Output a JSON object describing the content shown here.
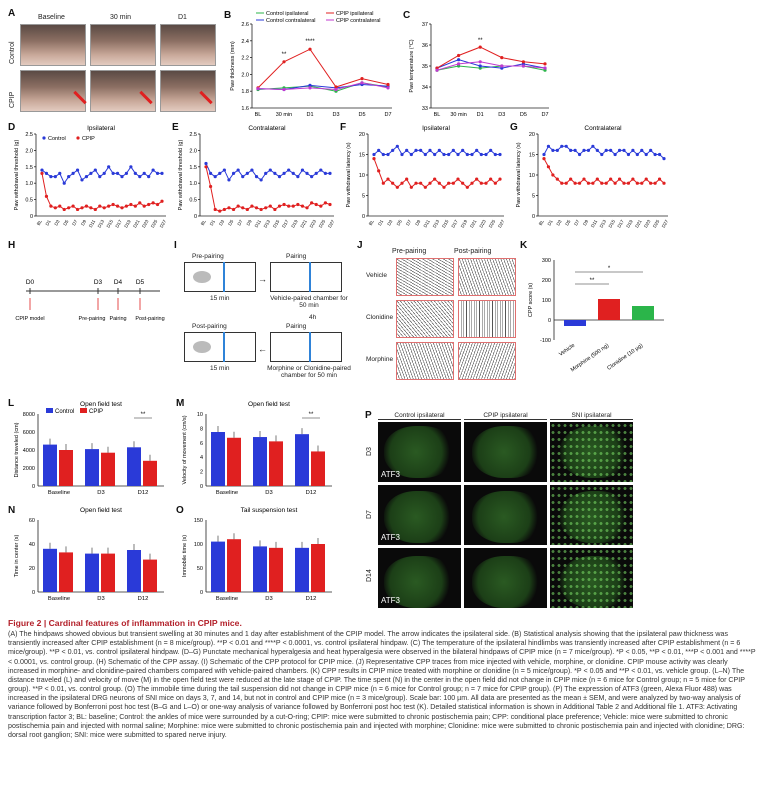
{
  "panels": {
    "A": "A",
    "B": "B",
    "C": "C",
    "D": "D",
    "E": "E",
    "F": "F",
    "G": "G",
    "H": "H",
    "I": "I",
    "J": "J",
    "K": "K",
    "L": "L",
    "M": "M",
    "N": "N",
    "O": "O",
    "P": "P"
  },
  "photo": {
    "cols": [
      "Baseline",
      "30 min",
      "D1"
    ],
    "rows": [
      "Control",
      "CPIP"
    ]
  },
  "chart_data": [
    {
      "panel": "B",
      "type": "line",
      "categories": [
        "BL",
        "30 min",
        "D1",
        "D3",
        "D5",
        "D7"
      ],
      "ylabel": "Paw thickness (mm)",
      "ylim": [
        1.6,
        2.6
      ],
      "yticks": [
        "1.6",
        "1.8",
        "2.0",
        "2.2",
        "2.4",
        "2.6"
      ],
      "series": [
        {
          "name": "Control ipsilateral",
          "color": "#2bb54a",
          "values": [
            1.82,
            1.84,
            1.86,
            1.8,
            1.9,
            1.85
          ]
        },
        {
          "name": "Control contralateral",
          "color": "#2a3ad8",
          "values": [
            1.83,
            1.82,
            1.87,
            1.84,
            1.88,
            1.86
          ]
        },
        {
          "name": "CPIP ipsilateral",
          "color": "#e02020",
          "values": [
            1.84,
            2.15,
            2.3,
            1.85,
            1.95,
            1.88
          ]
        },
        {
          "name": "CPIP contralateral",
          "color": "#c03ad0",
          "values": [
            1.83,
            1.82,
            1.84,
            1.82,
            1.9,
            1.84
          ]
        }
      ],
      "annotations": [
        "**",
        "****"
      ]
    },
    {
      "panel": "C",
      "type": "line",
      "categories": [
        "BL",
        "30 min",
        "D1",
        "D3",
        "D5",
        "D7"
      ],
      "ylabel": "Paw temperature (°C)",
      "ylim": [
        33,
        37
      ],
      "yticks": [
        "33",
        "34",
        "35",
        "36",
        "37"
      ],
      "series": [
        {
          "name": "Control ipsilateral",
          "color": "#2bb54a",
          "values": [
            34.8,
            35.0,
            34.9,
            35.0,
            35.0,
            34.8
          ]
        },
        {
          "name": "Control contralateral",
          "color": "#2a3ad8",
          "values": [
            34.9,
            35.3,
            35.0,
            34.9,
            35.1,
            34.9
          ]
        },
        {
          "name": "CPIP ipsilateral",
          "color": "#e02020",
          "values": [
            34.9,
            35.5,
            35.9,
            35.4,
            35.2,
            35.1
          ]
        },
        {
          "name": "CPIP contralateral",
          "color": "#c03ad0",
          "values": [
            34.8,
            35.1,
            35.2,
            35.0,
            35.0,
            34.9
          ]
        }
      ],
      "annotations": [
        "**"
      ]
    },
    {
      "panel": "D",
      "type": "line",
      "title": "Ipsilateral",
      "ylabel": "Paw withdrawal threshold (g)",
      "ylim": [
        0,
        2.5
      ],
      "yticks": [
        "0",
        "0.5",
        "1.0",
        "1.5",
        "2.0",
        "2.5"
      ],
      "xticks": [
        "BL",
        "D1",
        "D3",
        "D5",
        "D7",
        "D9",
        "D11",
        "D13",
        "D15",
        "D17",
        "D19",
        "D21",
        "D23",
        "D25",
        "D27"
      ],
      "series": [
        {
          "name": "Control",
          "color": "#2a3ad8",
          "values": [
            1.4,
            1.3,
            1.2,
            1.2,
            1.3,
            1.0,
            1.2,
            1.3,
            1.4,
            1.1,
            1.2,
            1.3,
            1.4,
            1.2,
            1.3,
            1.5,
            1.3,
            1.3,
            1.2,
            1.3,
            1.5,
            1.3,
            1.2,
            1.3,
            1.2,
            1.4,
            1.3,
            1.3
          ]
        },
        {
          "name": "CPIP",
          "color": "#e02020",
          "values": [
            1.3,
            0.6,
            0.3,
            0.25,
            0.3,
            0.2,
            0.25,
            0.3,
            0.2,
            0.25,
            0.3,
            0.25,
            0.2,
            0.3,
            0.25,
            0.3,
            0.35,
            0.3,
            0.25,
            0.3,
            0.35,
            0.3,
            0.4,
            0.3,
            0.35,
            0.4,
            0.35,
            0.45
          ]
        }
      ]
    },
    {
      "panel": "E",
      "type": "line",
      "title": "Contralateral",
      "ylabel": "Paw withdrawal threshold (g)",
      "ylim": [
        0,
        2.5
      ],
      "yticks": [
        "0",
        "0.5",
        "1.0",
        "1.5",
        "2.0",
        "2.5"
      ],
      "xticks": [
        "BL",
        "D1",
        "D3",
        "D5",
        "D7",
        "D9",
        "D11",
        "D13",
        "D15",
        "D17",
        "D19",
        "D21",
        "D23",
        "D25",
        "D27"
      ],
      "series": [
        {
          "name": "Control",
          "color": "#2a3ad8",
          "values": [
            1.6,
            1.3,
            1.2,
            1.3,
            1.4,
            1.1,
            1.3,
            1.4,
            1.2,
            1.3,
            1.4,
            1.2,
            1.1,
            1.3,
            1.4,
            1.3,
            1.2,
            1.3,
            1.4,
            1.3,
            1.2,
            1.4,
            1.3,
            1.2,
            1.3,
            1.4,
            1.3,
            1.3
          ]
        },
        {
          "name": "CPIP",
          "color": "#e02020",
          "values": [
            1.5,
            0.9,
            0.2,
            0.15,
            0.2,
            0.25,
            0.2,
            0.3,
            0.25,
            0.2,
            0.3,
            0.25,
            0.2,
            0.25,
            0.3,
            0.2,
            0.3,
            0.35,
            0.3,
            0.3,
            0.35,
            0.3,
            0.25,
            0.4,
            0.35,
            0.3,
            0.4,
            0.35
          ]
        }
      ]
    },
    {
      "panel": "F",
      "type": "line",
      "title": "Ipsilateral",
      "ylabel": "Paw withdrawal latency (s)",
      "ylim": [
        0,
        20
      ],
      "yticks": [
        "0",
        "5",
        "10",
        "15",
        "20"
      ],
      "xticks": [
        "BL",
        "D1",
        "D3",
        "D5",
        "D7",
        "D9",
        "D11",
        "D13",
        "D15",
        "D17",
        "D19",
        "D21",
        "D23",
        "D25",
        "D27"
      ],
      "series": [
        {
          "name": "Control",
          "color": "#2a3ad8",
          "values": [
            15,
            16,
            15,
            15,
            16,
            17,
            15,
            16,
            15,
            16,
            16,
            15,
            16,
            15,
            16,
            15,
            15,
            16,
            15,
            16,
            15,
            15,
            16,
            15,
            15,
            16,
            15,
            15
          ]
        },
        {
          "name": "CPIP",
          "color": "#e02020",
          "values": [
            14,
            11,
            8,
            9,
            8,
            7,
            8,
            9,
            7,
            8,
            8,
            7,
            8,
            9,
            8,
            7,
            8,
            8,
            9,
            8,
            7,
            8,
            9,
            8,
            8,
            9,
            8,
            9
          ]
        }
      ]
    },
    {
      "panel": "G",
      "type": "line",
      "title": "Contralateral",
      "ylabel": "Paw withdrawal latency (s)",
      "ylim": [
        0,
        20
      ],
      "yticks": [
        "0",
        "5",
        "10",
        "15",
        "20"
      ],
      "xticks": [
        "BL",
        "D1",
        "D3",
        "D5",
        "D7",
        "D9",
        "D11",
        "D13",
        "D15",
        "D17",
        "D19",
        "D21",
        "D23",
        "D25",
        "D27"
      ],
      "series": [
        {
          "name": "Control",
          "color": "#2a3ad8",
          "values": [
            15,
            17,
            16,
            16,
            17,
            17,
            16,
            16,
            15,
            16,
            16,
            17,
            16,
            15,
            16,
            16,
            15,
            16,
            16,
            15,
            16,
            15,
            16,
            15,
            16,
            15,
            15,
            14
          ]
        },
        {
          "name": "CPIP",
          "color": "#e02020",
          "values": [
            14,
            12,
            10,
            9,
            8,
            8,
            9,
            8,
            8,
            9,
            8,
            8,
            9,
            8,
            8,
            9,
            8,
            9,
            8,
            8,
            9,
            8,
            8,
            9,
            8,
            8,
            9,
            8
          ]
        }
      ]
    },
    {
      "panel": "K",
      "type": "bar",
      "categories": [
        "Vehicle",
        "Morphine (500 ng)",
        "Clonidine (10 µg)"
      ],
      "values": [
        -30,
        105,
        70
      ],
      "colors": [
        "#2a3ad8",
        "#e02020",
        "#2bb54a"
      ],
      "ylabel": "CPP score (s)",
      "ylim": [
        -100,
        300
      ],
      "yticks": [
        "-100",
        "0",
        "100",
        "200",
        "300"
      ],
      "annotations": [
        "**",
        "*"
      ]
    },
    {
      "panel": "L",
      "type": "bar",
      "title": "Open field test",
      "categories": [
        "Baseline",
        "D3",
        "D12"
      ],
      "series": [
        {
          "name": "Control",
          "color": "#2a3ad8",
          "values": [
            4600,
            4100,
            4300
          ]
        },
        {
          "name": "CPIP",
          "color": "#e02020",
          "values": [
            4000,
            3700,
            2800
          ]
        }
      ],
      "ylabel": "Distance traveled (cm)",
      "ylim": [
        0,
        8000
      ],
      "yticks": [
        "0",
        "2000",
        "4000",
        "6000",
        "8000"
      ],
      "annotations": [
        "**"
      ]
    },
    {
      "panel": "M",
      "type": "bar",
      "title": "Open field test",
      "categories": [
        "Baseline",
        "D3",
        "D12"
      ],
      "series": [
        {
          "name": "Control",
          "color": "#2a3ad8",
          "values": [
            7.5,
            6.8,
            7.2
          ]
        },
        {
          "name": "CPIP",
          "color": "#e02020",
          "values": [
            6.7,
            6.2,
            4.8
          ]
        }
      ],
      "ylabel": "Velocity of movement (cm/s)",
      "ylim": [
        0,
        10
      ],
      "yticks": [
        "0",
        "2",
        "4",
        "6",
        "8",
        "10"
      ],
      "annotations": [
        "**"
      ]
    },
    {
      "panel": "N",
      "type": "bar",
      "title": "Open field test",
      "categories": [
        "Baseline",
        "D3",
        "D12"
      ],
      "series": [
        {
          "name": "Control",
          "color": "#2a3ad8",
          "values": [
            36,
            32,
            35
          ]
        },
        {
          "name": "CPIP",
          "color": "#e02020",
          "values": [
            33,
            32,
            27
          ]
        }
      ],
      "ylabel": "Time in center (s)",
      "ylim": [
        0,
        60
      ],
      "yticks": [
        "0",
        "20",
        "40",
        "60"
      ]
    },
    {
      "panel": "O",
      "type": "bar",
      "title": "Tail suspension test",
      "categories": [
        "Baseline",
        "D3",
        "D12"
      ],
      "series": [
        {
          "name": "Control",
          "color": "#2a3ad8",
          "values": [
            105,
            95,
            92
          ]
        },
        {
          "name": "CPIP",
          "color": "#e02020",
          "values": [
            110,
            92,
            100
          ]
        }
      ],
      "ylabel": "Immobile time (s)",
      "ylim": [
        0,
        150
      ],
      "yticks": [
        "0",
        "50",
        "100",
        "150"
      ]
    }
  ],
  "legends": {
    "D": [
      "Control",
      "CPIP"
    ],
    "L": [
      "Control",
      "CPIP"
    ]
  },
  "timeline": {
    "points": [
      "D0",
      "D3",
      "D4",
      "D5"
    ],
    "labels": [
      "CPIP model",
      "Pre-pairing",
      "Pairing",
      "Post-pairing"
    ]
  },
  "cpp_protocol": {
    "pre": "Pre-pairing",
    "pairing": "Pairing",
    "post_pre": "Post-pairing",
    "pairing2": "Pairing",
    "t1": "15 min",
    "t2": "15 min",
    "veh": "Vehicle-paired chamber for 50 min",
    "gap": "4h",
    "morph": "Morphine or Clonidine-paired chamber for 50 min"
  },
  "traces": {
    "cols": [
      "Pre-pairing",
      "Post-pairing"
    ],
    "rows": [
      "Vehicle",
      "Clonidine",
      "Morphine"
    ]
  },
  "micro": {
    "cols": [
      "Control ipsilateral",
      "CPIP ipsilateral",
      "SNI ipsilateral"
    ],
    "rows": [
      "D3",
      "D7",
      "D14"
    ],
    "stain": "ATF3"
  },
  "caption": {
    "title": "Figure 2 | Cardinal features of inflammation in CPIP mice.",
    "body": "(A) The hindpaws showed obvious but transient swelling at 30 minutes and 1 day after establishment of the CPIP model. The arrow indicates the ipsilateral side. (B) Statistical analysis showing that the ipsilateral paw thickness was transiently increased after CPIP establishment (n = 8 mice/group). **P < 0.01 and ****P < 0.0001, vs. control ipsilateral hindpaw. (C) The temperature of the ipsilateral hindlimbs was transiently increased after CPIP establishment (n = 6 mice/group). **P < 0.01, vs. control ipsilateral hindpaw. (D–G) Punctate mechanical hyperalgesia and heat hyperalgesia were observed in the bilateral hindpaws of CPIP mice (n = 7 mice/group). *P < 0.05, **P < 0.01, ***P < 0.001 and ****P < 0.0001, vs. control group. (H) Schematic of the CPP assay. (I) Schematic of the CPP protocol for CPIP mice. (J) Representative CPP traces from mice injected with vehicle, morphine, or clonidine. CPIP mouse activity was clearly increased in morphine- and clonidine-paired chambers compared with vehicle-paired chambers. (K) CPP results in CPIP mice treated with morphine or clonidine (n = 5 mice/group). *P < 0.05 and **P < 0.01, vs. vehicle group. (L–N) The distance traveled (L) and velocity of move (M) in the open field test were reduced at the late stage of CPIP. The time spent (N) in the center in the open field did not change in CPIP mice (n = 6 mice for Control group; n = 5 mice for CPIP group). **P < 0.01, vs. control group. (O) The immobile time during the tail suspension did not change in CPIP mice (n = 6 mice for Control group; n = 7 mice for CPIP group). (P) The expression of ATF3 (green, Alexa Fluor 488) was increased in the ipsilateral DRG neurons of SNI mice on days 3, 7, and 14, but not in control and CPIP mice (n = 3 mice/group). Scale bar: 100 µm. All data are presented as the mean ± SEM, and were analyzed by two-way analysis of variance followed by Bonferroni post hoc test (B–G and L–O) or one-way analysis of variance followed by Bonferroni post hoc test (K). Detailed statistical information is shown in Additional Table 2 and Additional file 1. ATF3: Activating transcription factor 3; BL: baseline; Control: the ankles of mice were surrounded by a cut-O-ring; CPIP: mice were submitted to chronic postischemia pain; CPP: conditional place preference; Vehicle: mice were submitted to chronic postischemia pain and injected with normal saline; Morphine: mice were submitted to chronic postischemia pain and injected with morphine; Clonidine: mice were submitted to chronic postischemia pain and injected with clonidine; DRG: dorsal root ganglion; SNI: mice were submitted to spared nerve injury."
  }
}
